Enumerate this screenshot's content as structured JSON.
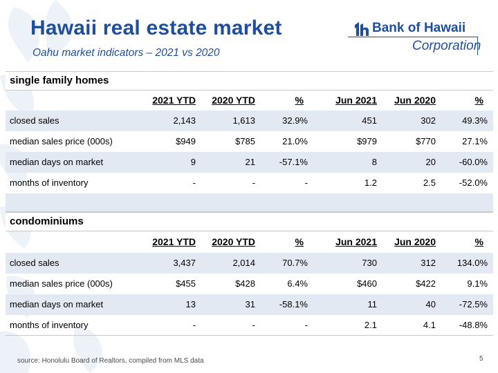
{
  "header": {
    "title": "Hawaii real estate market",
    "subtitle": "Oahu market indicators – 2021 vs 2020"
  },
  "logo": {
    "brand": "Bank of Hawaii",
    "subbrand": "Corporation",
    "icon": "bank-of-hawaii-logo-mark",
    "color": "#1f4e9c"
  },
  "columns": [
    "2021 YTD",
    "2020 YTD",
    "%",
    "Jun 2021",
    "Jun 2020",
    "%"
  ],
  "single_family": {
    "title": "single family homes",
    "rows": [
      {
        "label": "closed sales",
        "cells": [
          "2,143",
          "1,613",
          "32.9%",
          "451",
          "302",
          "49.3%"
        ]
      },
      {
        "label": "median sales price (000s)",
        "cells": [
          "$949",
          "$785",
          "21.0%",
          "$979",
          "$770",
          "27.1%"
        ]
      },
      {
        "label": "median days on market",
        "cells": [
          "9",
          "21",
          "-57.1%",
          "8",
          "20",
          "-60.0%"
        ]
      },
      {
        "label": "months of inventory",
        "cells": [
          "-",
          "-",
          "-",
          "1.2",
          "2.5",
          "-52.0%"
        ]
      }
    ]
  },
  "condominiums": {
    "title": "condominiums",
    "rows": [
      {
        "label": "closed sales",
        "cells": [
          "3,437",
          "2,014",
          "70.7%",
          "730",
          "312",
          "134.0%"
        ]
      },
      {
        "label": "median sales price (000s)",
        "cells": [
          "$455",
          "$428",
          "6.4%",
          "$460",
          "$422",
          "9.1%"
        ]
      },
      {
        "label": "median days on market",
        "cells": [
          "13",
          "31",
          "-58.1%",
          "11",
          "40",
          "-72.5%"
        ]
      },
      {
        "label": "months of inventory",
        "cells": [
          "-",
          "-",
          "-",
          "2.1",
          "4.1",
          "-48.8%"
        ]
      }
    ]
  },
  "footer": {
    "source": "source: Honolulu Board of Realtors, compiled from MLS data",
    "page_number": "5"
  },
  "colors": {
    "accent": "#1f4e9c",
    "row_shade": "#e3e9f3",
    "background_pattern": "#eef3f8"
  }
}
